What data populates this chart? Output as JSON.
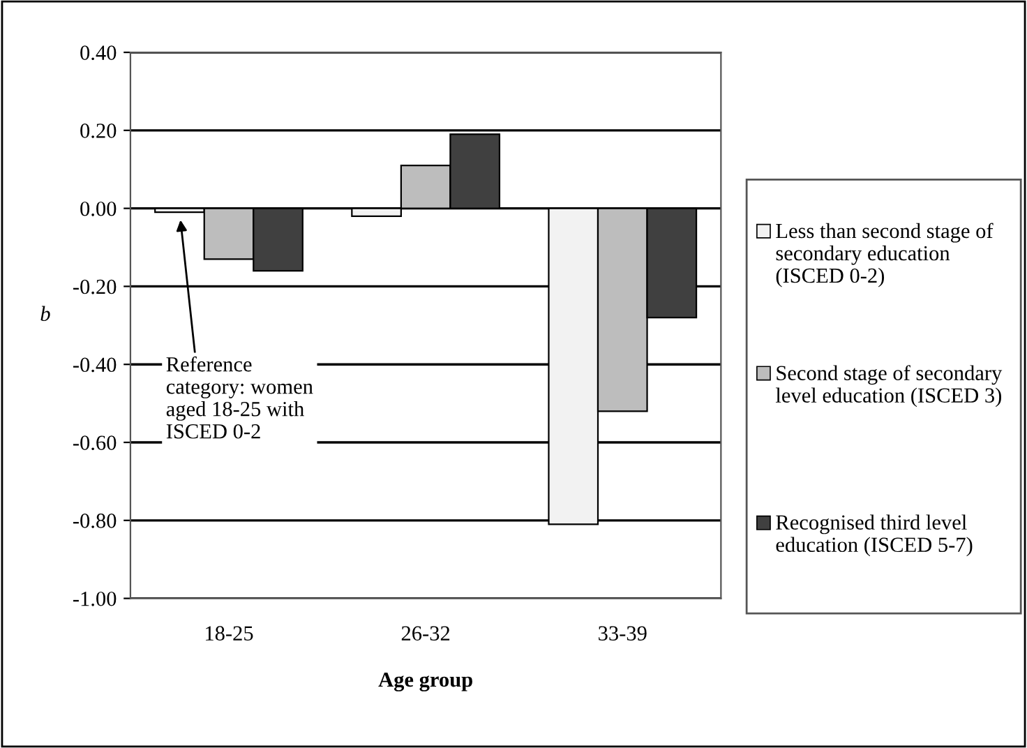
{
  "chart_data": {
    "type": "bar",
    "xlabel": "Age group",
    "ylabel": "b",
    "categories": [
      "18-25",
      "26-32",
      "33-39"
    ],
    "series": [
      {
        "name": "Less than second stage of secondary education (ISCED 0-2)",
        "color": "#f2f2f2",
        "values": [
          -0.01,
          -0.02,
          -0.81
        ]
      },
      {
        "name": "Second stage of secondary level education (ISCED 3)",
        "color": "#bdbdbd",
        "values": [
          -0.13,
          0.11,
          -0.52
        ]
      },
      {
        "name": "Recognised third level education (ISCED 5-7)",
        "color": "#404040",
        "values": [
          -0.16,
          0.19,
          -0.28
        ]
      }
    ],
    "ylim": [
      -1.0,
      0.4
    ],
    "yticks": [
      {
        "value": -1.0,
        "label": "-1.00"
      },
      {
        "value": -0.8,
        "label": "-0.80"
      },
      {
        "value": -0.6,
        "label": "-0.60"
      },
      {
        "value": -0.4,
        "label": "-0.40"
      },
      {
        "value": -0.2,
        "label": "-0.20"
      },
      {
        "value": 0,
        "label": "0.00"
      },
      {
        "value": 0.2,
        "label": "0.20"
      },
      {
        "value": 0.4,
        "label": "0.40"
      }
    ],
    "annotations": [
      "Reference category: women aged 18-25 with ISCED 0-2"
    ],
    "grid": "y",
    "legend": "right"
  }
}
